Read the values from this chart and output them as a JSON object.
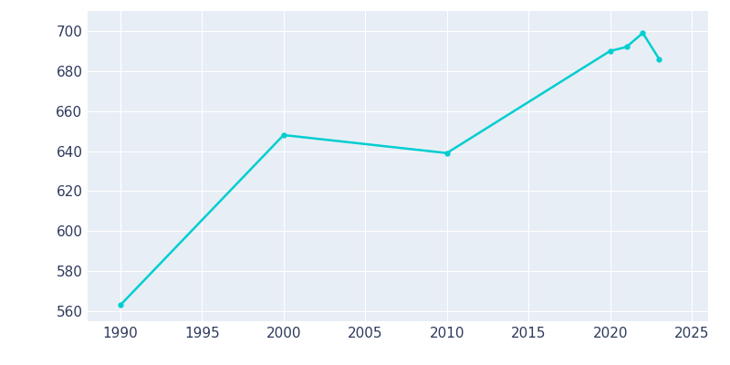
{
  "years": [
    1990,
    2000,
    2010,
    2020,
    2021,
    2022,
    2023
  ],
  "population": [
    563,
    648,
    639,
    690,
    692,
    699,
    686
  ],
  "line_color": "#00CED1",
  "background_color": "#E8EEF5",
  "outer_background": "#FFFFFF",
  "grid_color": "#FFFFFF",
  "xlim": [
    1988,
    2026
  ],
  "ylim": [
    555,
    710
  ],
  "xticks": [
    1990,
    1995,
    2000,
    2005,
    2010,
    2015,
    2020,
    2025
  ],
  "yticks": [
    560,
    580,
    600,
    620,
    640,
    660,
    680,
    700
  ],
  "tick_color": "#2D3A5C",
  "tick_fontsize": 11
}
